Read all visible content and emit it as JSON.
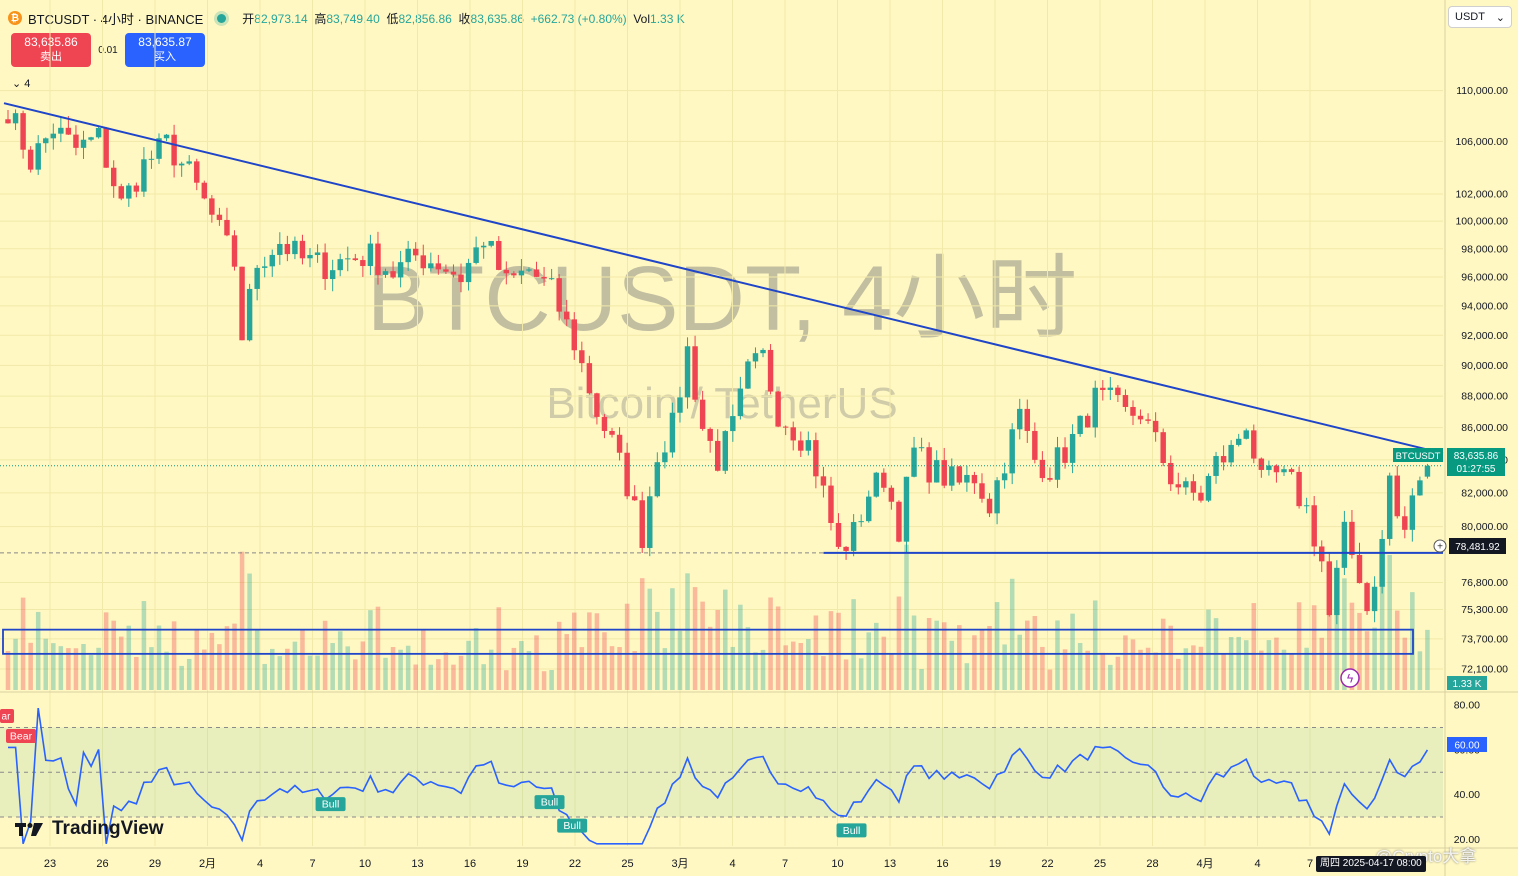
{
  "header": {
    "symbol": "BTCUSDT · 4小时 · BINANCE",
    "coin_badge": "₿",
    "open_label": "开",
    "open": "82,973.14",
    "high_label": "高",
    "high": "83,749.40",
    "low_label": "低",
    "low": "82,856.86",
    "close_label": "收",
    "close": "83,635.86",
    "change": "+662.73 (+0.80%)",
    "vol_label": "Vol",
    "vol": "1.33 K"
  },
  "trade": {
    "sell_price": "83,635.86",
    "sell_label": "卖出",
    "spread": "0.01",
    "buy_price": "83,635.87",
    "buy_label": "买入"
  },
  "collapse_count": "4",
  "currency_select": "USDT",
  "watermark": {
    "title": "BTCUSDT, 4小时",
    "subtitle": "Bitcoin / TetherUS"
  },
  "tv_brand": "TradingView",
  "credit": "@Crypto大拿",
  "time_badge": "周四 2025-04-17  08:00",
  "price_badge": {
    "symbol": "BTCUSDT",
    "price": "83,635.86",
    "countdown": "01:27:55"
  },
  "level_badge": "78,481.92",
  "volume_badge": "1.33 K",
  "rsi_badge": "60.00",
  "signals": {
    "bear": "Bear",
    "bear_cut": "ar",
    "bull": "Bull"
  },
  "colors": {
    "up": "#26a69a",
    "down": "#ef4451",
    "trend": "#1f45c9",
    "rsi": "#2962ff",
    "bg": "#fff8c2"
  },
  "chart_data": [
    {
      "type": "candlestick",
      "symbol": "BTCUSDT",
      "interval": "4h",
      "exchange": "BINANCE",
      "quote": "USDT",
      "scale": "log",
      "ylim": [
        71000,
        112000
      ],
      "y_ticks": [
        "110,000.00",
        "106,000.00",
        "102,000.00",
        "100,000.00",
        "98,000.00",
        "96,000.00",
        "94,000.00",
        "92,000.00",
        "90,000.00",
        "88,000.00",
        "86,000.00",
        "84,000.00",
        "82,000.00",
        "80,000.00",
        "76,800.00",
        "75,300.00",
        "73,700.00",
        "72,100.00"
      ],
      "x_ticks": [
        "23",
        "26",
        "29",
        "2月",
        "4",
        "7",
        "10",
        "13",
        "16",
        "19",
        "22",
        "25",
        "3月",
        "4",
        "7",
        "10",
        "13",
        "16",
        "19",
        "22",
        "25",
        "28",
        "4月",
        "4",
        "7"
      ],
      "x_start": "2025-01-22",
      "x_end": "2025-04-17",
      "last": {
        "open": 82973.14,
        "high": 83749.4,
        "low": 82856.86,
        "close": 83635.86
      },
      "path": [
        [
          0,
          108600
        ],
        [
          3,
          104500
        ],
        [
          6,
          107000
        ],
        [
          9,
          105400
        ],
        [
          12,
          106300
        ],
        [
          15,
          101200
        ],
        [
          18,
          104200
        ],
        [
          21,
          105800
        ],
        [
          24,
          103500
        ],
        [
          27,
          100300
        ],
        [
          30,
          97000
        ],
        [
          31,
          92000
        ],
        [
          33,
          97000
        ],
        [
          36,
          98500
        ],
        [
          39,
          97200
        ],
        [
          42,
          96800
        ],
        [
          45,
          97300
        ],
        [
          48,
          97500
        ],
        [
          51,
          96300
        ],
        [
          54,
          97500
        ],
        [
          57,
          97000
        ],
        [
          60,
          96000
        ],
        [
          63,
          98800
        ],
        [
          66,
          95500
        ],
        [
          69,
          96500
        ],
        [
          72,
          95000
        ],
        [
          75,
          91500
        ],
        [
          78,
          87000
        ],
        [
          80,
          85000
        ],
        [
          82,
          82500
        ],
        [
          84,
          79500
        ],
        [
          86,
          84500
        ],
        [
          88,
          86000
        ],
        [
          90,
          91000
        ],
        [
          92,
          86000
        ],
        [
          94,
          84000
        ],
        [
          96,
          86000
        ],
        [
          98,
          89500
        ],
        [
          100,
          90500
        ],
        [
          102,
          87000
        ],
        [
          104,
          86000
        ],
        [
          106,
          85000
        ],
        [
          108,
          82000
        ],
        [
          110,
          78500
        ],
        [
          112,
          79600
        ],
        [
          114,
          82000
        ],
        [
          116,
          83000
        ],
        [
          118,
          80000
        ],
        [
          120,
          84500
        ],
        [
          122,
          83500
        ],
        [
          124,
          83000
        ],
        [
          126,
          82500
        ],
        [
          128,
          83000
        ],
        [
          130,
          81300
        ],
        [
          132,
          84000
        ],
        [
          134,
          86800
        ],
        [
          136,
          84000
        ],
        [
          138,
          83500
        ],
        [
          140,
          84500
        ],
        [
          142,
          86000
        ],
        [
          144,
          87800
        ],
        [
          146,
          87600
        ],
        [
          148,
          86800
        ],
        [
          150,
          87000
        ],
        [
          152,
          85000
        ],
        [
          154,
          83000
        ],
        [
          156,
          82000
        ],
        [
          158,
          81800
        ],
        [
          160,
          83800
        ],
        [
          162,
          84500
        ],
        [
          164,
          86400
        ],
        [
          166,
          82500
        ],
        [
          168,
          83000
        ],
        [
          170,
          82500
        ],
        [
          172,
          81000
        ],
        [
          174,
          78000
        ],
        [
          175,
          74900
        ],
        [
          177,
          79500
        ],
        [
          179,
          77300
        ],
        [
          180,
          75300
        ],
        [
          182,
          79000
        ],
        [
          183,
          83000
        ],
        [
          184,
          80500
        ],
        [
          185,
          79800
        ],
        [
          187,
          83000
        ],
        [
          188,
          82973
        ],
        [
          189,
          83636
        ]
      ]
    },
    {
      "type": "line",
      "name": "RSI",
      "ylim": [
        17,
        85
      ],
      "y_ticks": [
        "80.00",
        "60.00",
        "40.00",
        "20.00"
      ],
      "band": [
        30,
        70
      ],
      "midline": 50,
      "last": 60.0,
      "signals": [
        {
          "t": 0,
          "label": "Bear"
        },
        {
          "t": 70,
          "label": "Bull"
        },
        {
          "t": 73,
          "label": "Bull"
        },
        {
          "t": 110,
          "label": "Bull"
        },
        {
          "t": 41,
          "label": "Bull"
        }
      ]
    },
    {
      "type": "bar",
      "name": "Volume",
      "last": "1.33 K"
    }
  ]
}
